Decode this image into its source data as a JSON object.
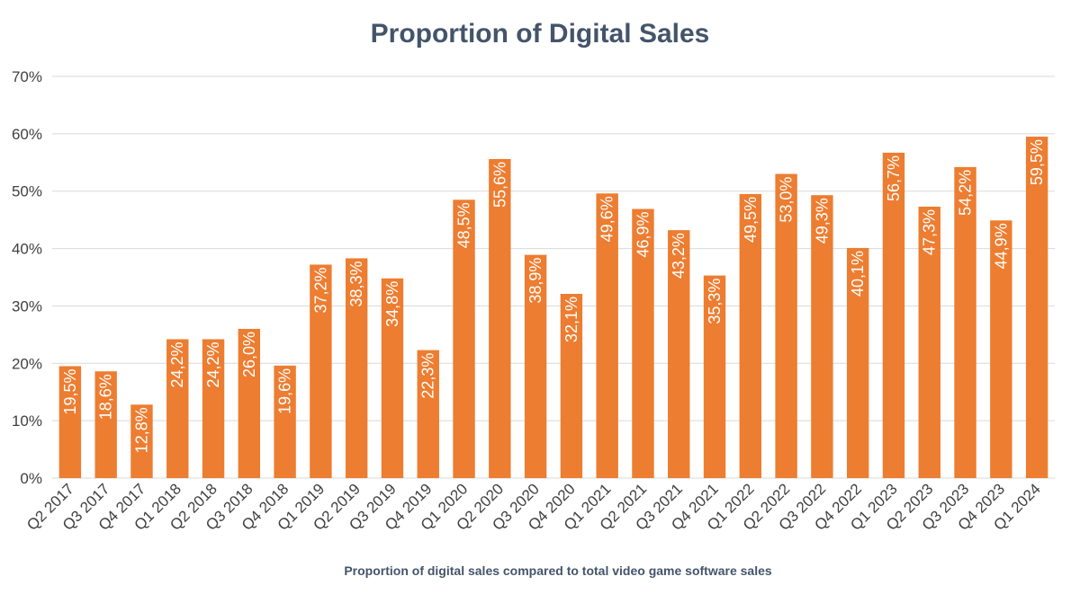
{
  "chart_data": {
    "type": "bar",
    "title": "Proportion of Digital Sales",
    "xlabel": "Proportion of digital sales compared to total video game software sales",
    "ylabel": "",
    "ylim": [
      0,
      70
    ],
    "y_ticks": [
      0,
      10,
      20,
      30,
      40,
      50,
      60,
      70
    ],
    "y_tick_labels": [
      "0%",
      "10%",
      "20%",
      "30%",
      "40%",
      "50%",
      "60%",
      "70%"
    ],
    "grid": true,
    "bar_color": "#ed7d31",
    "categories": [
      "Q2 2017",
      "Q3 2017",
      "Q4 2017",
      "Q1 2018",
      "Q2 2018",
      "Q3 2018",
      "Q4 2018",
      "Q1 2019",
      "Q2 2019",
      "Q3 2019",
      "Q4 2019",
      "Q1 2020",
      "Q2 2020",
      "Q3 2020",
      "Q4 2020",
      "Q1 2021",
      "Q2 2021",
      "Q3 2021",
      "Q4 2021",
      "Q1 2022",
      "Q2 2022",
      "Q3 2022",
      "Q4 2022",
      "Q1 2023",
      "Q2 2023",
      "Q3 2023",
      "Q4 2023",
      "Q1 2024"
    ],
    "values": [
      19.5,
      18.6,
      12.8,
      24.2,
      24.2,
      26.0,
      19.6,
      37.2,
      38.3,
      34.8,
      22.3,
      48.5,
      55.6,
      38.9,
      32.1,
      49.6,
      46.9,
      43.2,
      35.3,
      49.5,
      53.0,
      49.3,
      40.1,
      56.7,
      47.3,
      54.2,
      44.9,
      59.5
    ],
    "data_labels": [
      "19,5%",
      "18,6%",
      "12,8%",
      "24,2%",
      "24,2%",
      "26,0%",
      "19,6%",
      "37,2%",
      "38,3%",
      "34,8%",
      "22,3%",
      "48,5%",
      "55,6%",
      "38,9%",
      "32,1%",
      "49,6%",
      "46,9%",
      "43,2%",
      "35,3%",
      "49,5%",
      "53,0%",
      "49,3%",
      "40,1%",
      "56,7%",
      "47,3%",
      "54,2%",
      "44,9%",
      "59,5%"
    ]
  }
}
